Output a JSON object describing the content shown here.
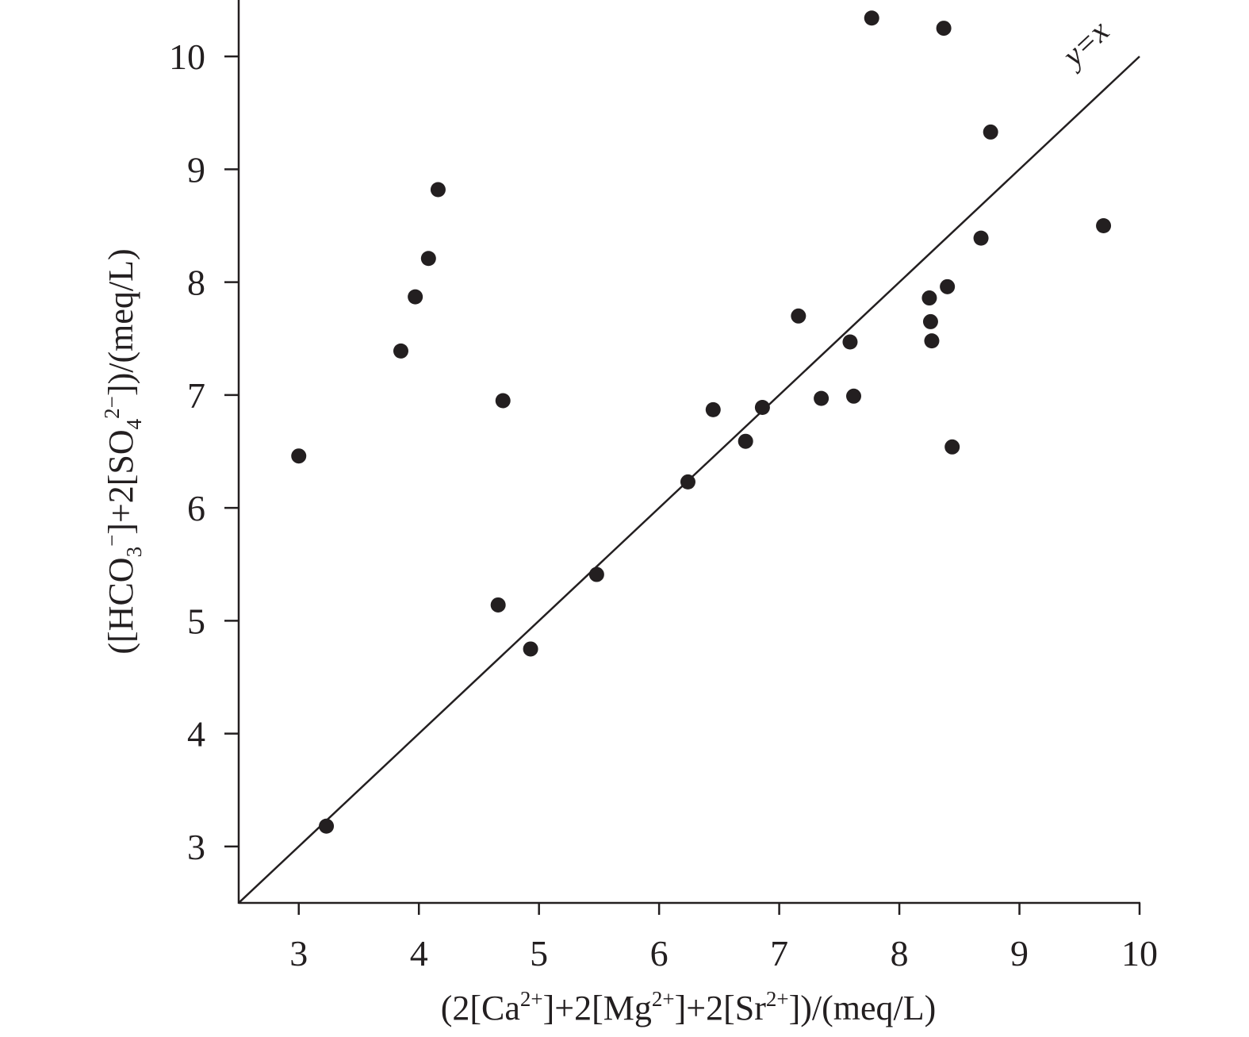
{
  "chart_data": {
    "type": "scatter",
    "title": "",
    "xlabel": "(2[Ca2+]+2[Mg2+]+2[Sr2+])/(meq/L)",
    "ylabel": "([HCO3−]+2[SO42−])/(meq/L)",
    "xlabel_parts": [
      {
        "t": "(2[Ca",
        "s": "n"
      },
      {
        "t": "2+",
        "s": "sup"
      },
      {
        "t": "]+2[Mg",
        "s": "n"
      },
      {
        "t": "2+",
        "s": "sup"
      },
      {
        "t": "]+2[Sr",
        "s": "n"
      },
      {
        "t": "2+",
        "s": "sup"
      },
      {
        "t": "])/(meq/L)",
        "s": "n"
      }
    ],
    "ylabel_parts": [
      {
        "t": "([HCO",
        "s": "n"
      },
      {
        "t": "3",
        "s": "sub"
      },
      {
        "t": "−",
        "s": "sup"
      },
      {
        "t": "]+2[SO",
        "s": "n"
      },
      {
        "t": "4",
        "s": "sub"
      },
      {
        "t": "2−",
        "s": "sup"
      },
      {
        "t": "])/(meq/L)",
        "s": "n"
      }
    ],
    "xlim": [
      2.5,
      10
    ],
    "ylim": [
      2.5,
      10.5
    ],
    "xticks": [
      3,
      4,
      5,
      6,
      7,
      8,
      9,
      10
    ],
    "yticks": [
      3,
      4,
      5,
      6,
      7,
      8,
      9,
      10
    ],
    "grid": false,
    "marker_color": "#231f20",
    "axis_color": "#231f20",
    "reference_line": {
      "label": "y=x",
      "from": [
        2.5,
        2.5
      ],
      "to": [
        10,
        10
      ]
    },
    "points": [
      {
        "x": 3.0,
        "y": 6.46
      },
      {
        "x": 3.23,
        "y": 3.18
      },
      {
        "x": 3.85,
        "y": 7.39
      },
      {
        "x": 3.97,
        "y": 7.87
      },
      {
        "x": 4.08,
        "y": 8.21
      },
      {
        "x": 4.16,
        "y": 8.82
      },
      {
        "x": 4.66,
        "y": 5.14
      },
      {
        "x": 4.7,
        "y": 6.95
      },
      {
        "x": 4.93,
        "y": 4.75
      },
      {
        "x": 5.48,
        "y": 5.41
      },
      {
        "x": 6.24,
        "y": 6.23
      },
      {
        "x": 6.45,
        "y": 6.87
      },
      {
        "x": 6.72,
        "y": 6.59
      },
      {
        "x": 6.86,
        "y": 6.89
      },
      {
        "x": 7.16,
        "y": 7.7
      },
      {
        "x": 7.35,
        "y": 6.97
      },
      {
        "x": 7.59,
        "y": 7.47
      },
      {
        "x": 7.62,
        "y": 6.99
      },
      {
        "x": 7.77,
        "y": 10.34
      },
      {
        "x": 8.25,
        "y": 7.86
      },
      {
        "x": 8.26,
        "y": 7.65
      },
      {
        "x": 8.27,
        "y": 7.48
      },
      {
        "x": 8.37,
        "y": 10.25
      },
      {
        "x": 8.4,
        "y": 7.96
      },
      {
        "x": 8.44,
        "y": 6.54
      },
      {
        "x": 8.68,
        "y": 8.39
      },
      {
        "x": 8.76,
        "y": 9.33
      },
      {
        "x": 9.7,
        "y": 8.5
      }
    ]
  }
}
